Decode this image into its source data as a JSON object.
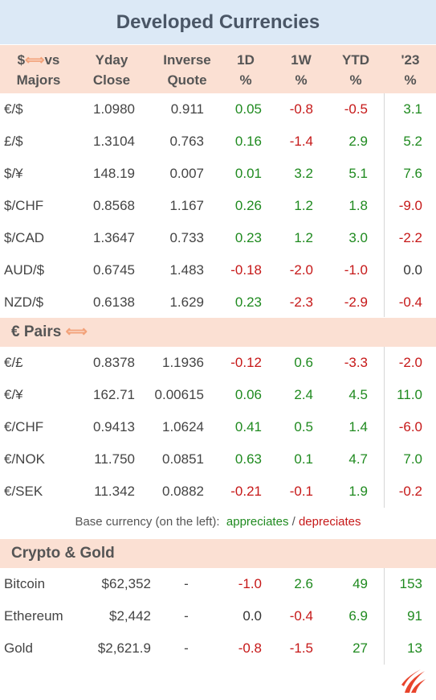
{
  "title": "Developed Currencies",
  "header": {
    "col0_line1": "$",
    "col0_arrow": "⟺",
    "col0_line1b": "vs",
    "col0_line2": "Majors",
    "yday_1": "Yday",
    "yday_2": "Close",
    "inv_1": "Inverse",
    "inv_2": "Quote",
    "d1_1": "1D",
    "d1_2": "%",
    "w1_1": "1W",
    "w1_2": "%",
    "ytd_1": "YTD",
    "ytd_2": "%",
    "y23_1": "'23",
    "y23_2": "%"
  },
  "majors": [
    {
      "name": "€/$",
      "close": "1.0980",
      "inverse": "0.911",
      "d1": "0.05",
      "w1": "-0.8",
      "ytd": "-0.5",
      "y23": "3.1"
    },
    {
      "name": "£/$",
      "close": "1.3104",
      "inverse": "0.763",
      "d1": "0.16",
      "w1": "-1.4",
      "ytd": "2.9",
      "y23": "5.2"
    },
    {
      "name": "$/¥",
      "close": "148.19",
      "inverse": "0.007",
      "d1": "0.01",
      "w1": "3.2",
      "ytd": "5.1",
      "y23": "7.6"
    },
    {
      "name": "$/CHF",
      "close": "0.8568",
      "inverse": "1.167",
      "d1": "0.26",
      "w1": "1.2",
      "ytd": "1.8",
      "y23": "-9.0"
    },
    {
      "name": "$/CAD",
      "close": "1.3647",
      "inverse": "0.733",
      "d1": "0.23",
      "w1": "1.2",
      "ytd": "3.0",
      "y23": "-2.2"
    },
    {
      "name": "AUD/$",
      "close": "0.6745",
      "inverse": "1.483",
      "d1": "-0.18",
      "w1": "-2.0",
      "ytd": "-1.0",
      "y23": "0.0"
    },
    {
      "name": "NZD/$",
      "close": "0.6138",
      "inverse": "1.629",
      "d1": "0.23",
      "w1": "-2.3",
      "ytd": "-2.9",
      "y23": "-0.4"
    }
  ],
  "euro_section": {
    "title": "€ Pairs",
    "arrow": "⟺"
  },
  "euro_pairs": [
    {
      "name": "€/£",
      "close": "0.8378",
      "inverse": "1.1936",
      "d1": "-0.12",
      "w1": "0.6",
      "ytd": "-3.3",
      "y23": "-2.0"
    },
    {
      "name": "€/¥",
      "close": "162.71",
      "inverse": "0.00615",
      "d1": "0.06",
      "w1": "2.4",
      "ytd": "4.5",
      "y23": "11.0"
    },
    {
      "name": "€/CHF",
      "close": "0.9413",
      "inverse": "1.0624",
      "d1": "0.41",
      "w1": "0.5",
      "ytd": "1.4",
      "y23": "-6.0"
    },
    {
      "name": "€/NOK",
      "close": "11.750",
      "inverse": "0.0851",
      "d1": "0.63",
      "w1": "0.1",
      "ytd": "4.7",
      "y23": "7.0"
    },
    {
      "name": "€/SEK",
      "close": "11.342",
      "inverse": "0.0882",
      "d1": "-0.21",
      "w1": "-0.1",
      "ytd": "1.9",
      "y23": "-0.2"
    }
  ],
  "note": {
    "prefix": "Base currency (on the left):",
    "appreciates": "appreciates",
    "sep": "/",
    "depreciates": "depreciates"
  },
  "crypto_section": {
    "title": "Crypto & Gold"
  },
  "crypto": [
    {
      "name": "Bitcoin",
      "close": "$62,352",
      "inverse": "-",
      "d1": "-1.0",
      "w1": "2.6",
      "ytd": "49",
      "y23": "153"
    },
    {
      "name": "Ethereum",
      "close": "$2,442",
      "inverse": "-",
      "d1": "0.0",
      "w1": "-0.4",
      "ytd": "6.9",
      "y23": "91"
    },
    {
      "name": "Gold",
      "close": "$2,621.9",
      "inverse": "-",
      "d1": "-0.8",
      "w1": "-1.5",
      "ytd": "27",
      "y23": "13"
    }
  ],
  "colors": {
    "positive": "#1f8a1f",
    "negative": "#c61818",
    "header_bg": "#fbe0d3",
    "title_bg": "#dce9f6",
    "logo": "#e8442c"
  },
  "logo_icon": "flame-logo"
}
